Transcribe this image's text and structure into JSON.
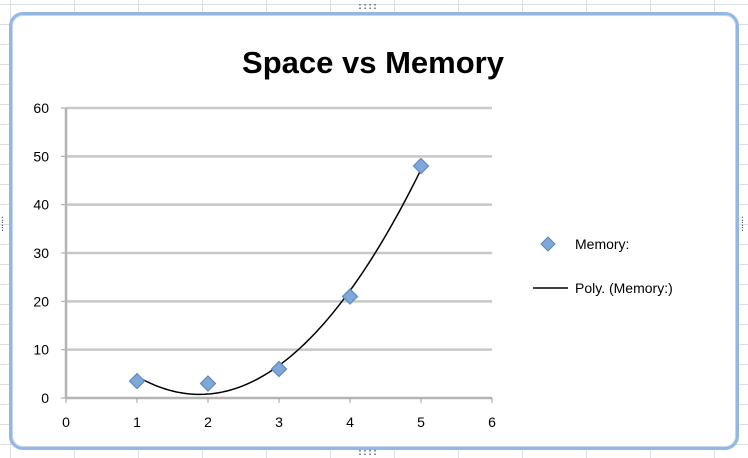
{
  "chart_data": {
    "type": "scatter",
    "title": "Space vs Memory",
    "xlabel": "",
    "ylabel": "",
    "xlim": [
      0,
      6
    ],
    "ylim": [
      0,
      60
    ],
    "x_ticks": [
      0,
      1,
      2,
      3,
      4,
      5,
      6
    ],
    "y_ticks": [
      0,
      10,
      20,
      30,
      40,
      50,
      60
    ],
    "grid": "horizontal major gridlines",
    "legend_position": "right",
    "series": [
      {
        "name": "Memory:",
        "marker": "diamond",
        "color": "#7fa7d8",
        "x": [
          1,
          2,
          3,
          4,
          5
        ],
        "y": [
          3.5,
          3,
          6,
          21,
          48
        ]
      }
    ],
    "trendline": {
      "name": "Poly. (Memory:)",
      "type": "polynomial",
      "color": "#000000",
      "x_range": [
        1,
        5
      ]
    }
  },
  "frame": {
    "border_color": "#93b7e3"
  }
}
